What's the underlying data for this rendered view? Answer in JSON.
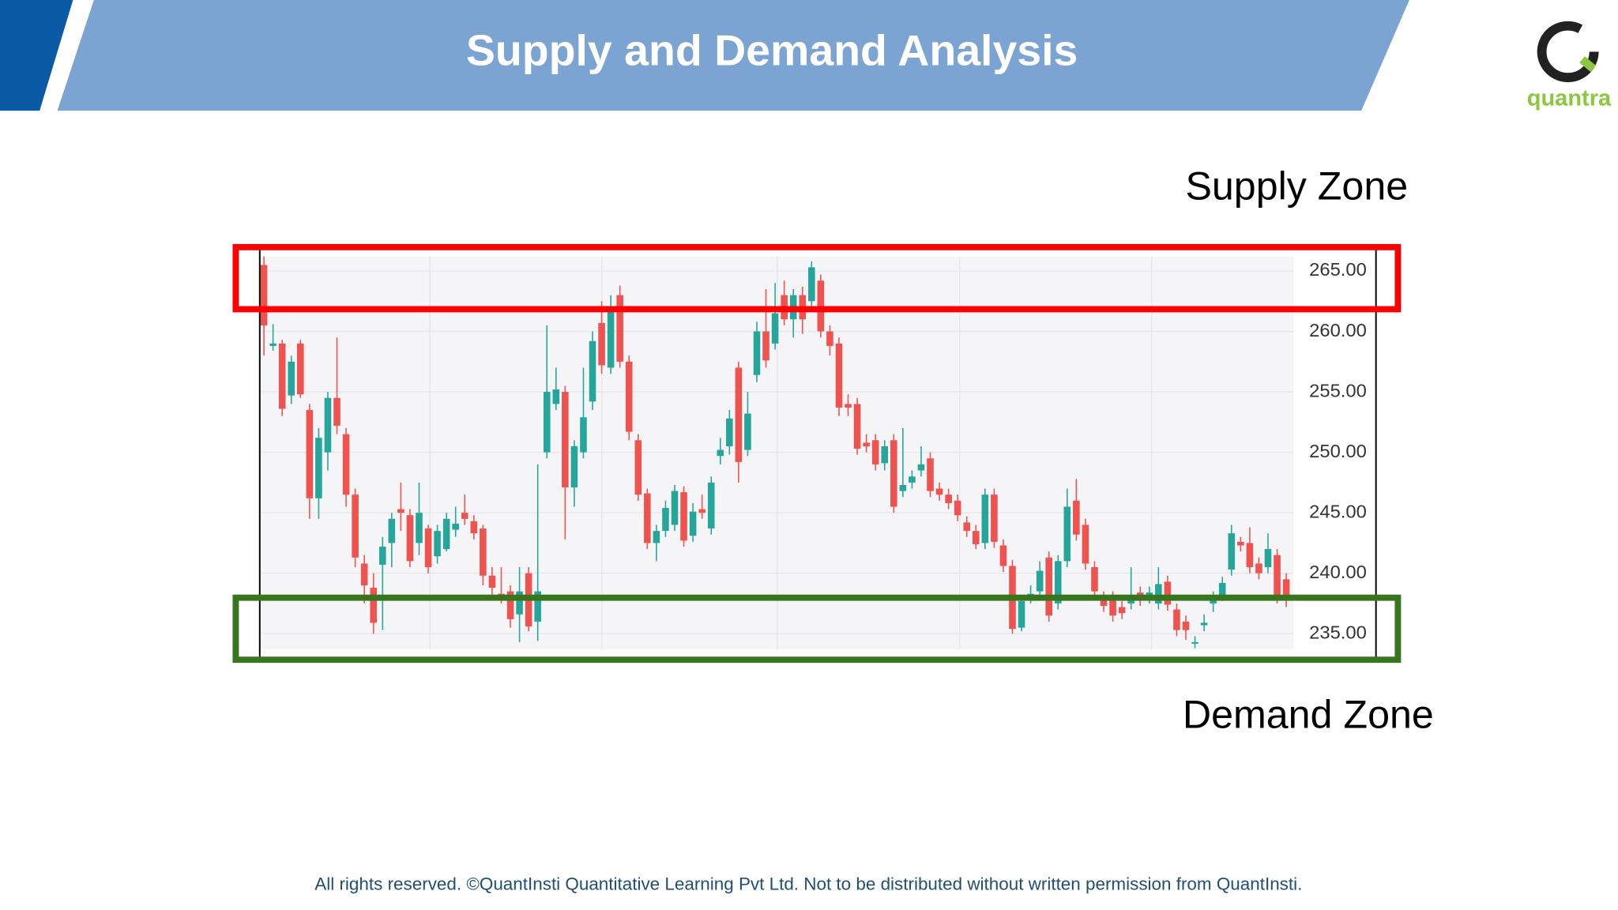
{
  "chart_data": {
    "type": "candlestick",
    "title": "Supply and Demand Analysis",
    "annotations": [
      "Supply Zone",
      "Demand Zone"
    ],
    "up_color": "#26a69a",
    "down_color": "#ef5350",
    "ylim": [
      233.7,
      266.2
    ],
    "yticks": [
      {
        "value": 235,
        "label": "235.00"
      },
      {
        "value": 240,
        "label": "240.00"
      },
      {
        "value": 245,
        "label": "245.00"
      },
      {
        "value": 250,
        "label": "250.00"
      },
      {
        "value": 255,
        "label": "255.00"
      },
      {
        "value": 260,
        "label": "260.00"
      },
      {
        "value": 265,
        "label": "265.00"
      }
    ],
    "open": [
      265.5,
      258.8,
      259,
      254.7,
      259,
      253.5,
      246.2,
      250,
      254.5,
      251.5,
      246.5,
      240.8,
      238.8,
      240.7,
      242.5,
      245.3,
      244.8,
      242.5,
      243.7,
      241.4,
      242,
      243.6,
      245,
      244.3,
      243.7,
      239.8,
      238.3,
      238.5,
      236.6,
      240,
      236,
      250,
      254,
      255,
      247.1,
      250,
      254.2,
      260.7,
      257,
      263,
      257.5,
      251,
      246.6,
      242.5,
      243.5,
      244,
      246.7,
      243.1,
      245.3,
      243.7,
      249.7,
      250.5,
      257,
      250.2,
      256.4,
      260,
      259,
      263,
      261,
      263,
      262.5,
      264.2,
      260,
      259,
      254,
      254,
      250.8,
      251,
      249.1,
      251,
      246.8,
      247.5,
      248.5,
      249.5,
      247,
      246.5,
      246,
      244.2,
      243.5,
      242.5,
      246.5,
      242.3,
      240.6,
      235.5,
      238,
      238.5,
      241.3,
      237.5,
      241,
      246,
      244,
      240.5,
      238,
      238,
      237.2,
      237.5,
      238.4,
      238,
      237.5,
      239.3,
      237,
      236,
      234.2,
      235.7,
      237.5,
      238.2,
      240.3,
      242.6,
      242.5,
      240.8,
      240.5,
      241.5,
      239.5
    ],
    "high": [
      266.2,
      260.6,
      259.3,
      258,
      259.3,
      254,
      252,
      255,
      259.5,
      252,
      247,
      241.5,
      240,
      243,
      245,
      247.5,
      245.3,
      247.5,
      244,
      244,
      245,
      245.5,
      246.5,
      244.8,
      244,
      240.5,
      240.5,
      239,
      240.5,
      240.5,
      249,
      260.5,
      257,
      255.5,
      251,
      257,
      260,
      262.5,
      263,
      263.8,
      258,
      251.5,
      247,
      244,
      246,
      247.3,
      247.2,
      245.8,
      246.5,
      248,
      251.2,
      253.5,
      257.5,
      255,
      260.8,
      263.5,
      264,
      264.2,
      263.5,
      263.7,
      265.8,
      264.7,
      260.5,
      259.5,
      254.8,
      254.5,
      251.5,
      251.5,
      251,
      251.5,
      252,
      248.5,
      250.5,
      250,
      247.5,
      247,
      246.5,
      244.7,
      244,
      247,
      247,
      242.8,
      241.1,
      238.2,
      239,
      241,
      241.8,
      241.5,
      247,
      247.8,
      244.5,
      241,
      238.5,
      238.5,
      237.7,
      240.5,
      238.9,
      238.9,
      240.5,
      239.8,
      237.5,
      236.5,
      234.8,
      236.6,
      238.5,
      239.7,
      244,
      243,
      243.8,
      241.3,
      243.3,
      242,
      240
    ],
    "low": [
      258,
      258.4,
      253,
      254,
      254.5,
      244.5,
      244.5,
      248.5,
      251.5,
      245.5,
      240.5,
      237.5,
      235,
      235.3,
      240.5,
      243.5,
      240.5,
      241.5,
      240,
      240.8,
      241.8,
      243,
      244,
      242.8,
      239,
      238.2,
      237.5,
      235.5,
      234.3,
      235.2,
      234.4,
      249.5,
      253.5,
      242.8,
      245.5,
      249.5,
      253.5,
      256.5,
      256.5,
      257,
      251,
      246,
      242,
      241,
      243,
      243.5,
      242.2,
      242.6,
      244.5,
      243.2,
      249,
      249.8,
      247.5,
      249.7,
      255.8,
      257,
      258.5,
      260.5,
      259.5,
      259.8,
      262,
      259.5,
      258,
      253,
      253,
      249.8,
      250,
      248.5,
      248.5,
      245,
      246.3,
      247,
      248,
      246.3,
      246,
      245.3,
      244.3,
      243,
      242,
      242,
      242.1,
      240.1,
      235,
      235.2,
      237.5,
      238,
      236,
      237,
      240.5,
      242.7,
      240.3,
      238,
      236.8,
      236,
      236.2,
      237,
      237.3,
      237.5,
      237,
      236.9,
      234.8,
      234.5,
      233.8,
      235.2,
      236.8,
      237.7,
      239.8,
      241.8,
      240,
      239.5,
      240,
      237.5,
      237.2
    ],
    "close": [
      260.5,
      259.0,
      253.6,
      257.5,
      254.8,
      246.2,
      251.2,
      254.5,
      252.2,
      246.5,
      241.3,
      239,
      235.9,
      242.2,
      244.5,
      245.0,
      241,
      245,
      240.5,
      243.5,
      244.5,
      244.1,
      244.5,
      243.3,
      239.8,
      238.8,
      238.0,
      236.2,
      238.5,
      235.6,
      238.5,
      255,
      255.2,
      247.1,
      250.5,
      252.9,
      259.2,
      257.2,
      261.8,
      257.5,
      251.7,
      246.5,
      242.5,
      243.5,
      245.4,
      246.8,
      242.7,
      245.1,
      245.0,
      247.5,
      250.2,
      252.8,
      249.2,
      253.2,
      260,
      257.6,
      261.5,
      261,
      263,
      261,
      265.3,
      260,
      258.8,
      253.7,
      253.7,
      250.3,
      250.5,
      249,
      250.5,
      245.5,
      247.3,
      248,
      249,
      246.8,
      246.5,
      245.8,
      244.8,
      243.5,
      242.4,
      246.5,
      242.6,
      240.6,
      235.4,
      237.7,
      238.3,
      240.2,
      236.5,
      241,
      245.5,
      243.2,
      240.8,
      238.5,
      237.3,
      236.5,
      236.7,
      237.8,
      237.8,
      238.4,
      239.1,
      237.4,
      235.3,
      235.3,
      234.3,
      235.9,
      237.8,
      239.2,
      243.3,
      242.3,
      240.5,
      240,
      242,
      238,
      238.1
    ]
  },
  "logo": "quantra",
  "footer": "All rights reserved. ©QuantInsti Quantitative Learning Pvt Ltd. Not to be distributed without written permission from QuantInsti."
}
